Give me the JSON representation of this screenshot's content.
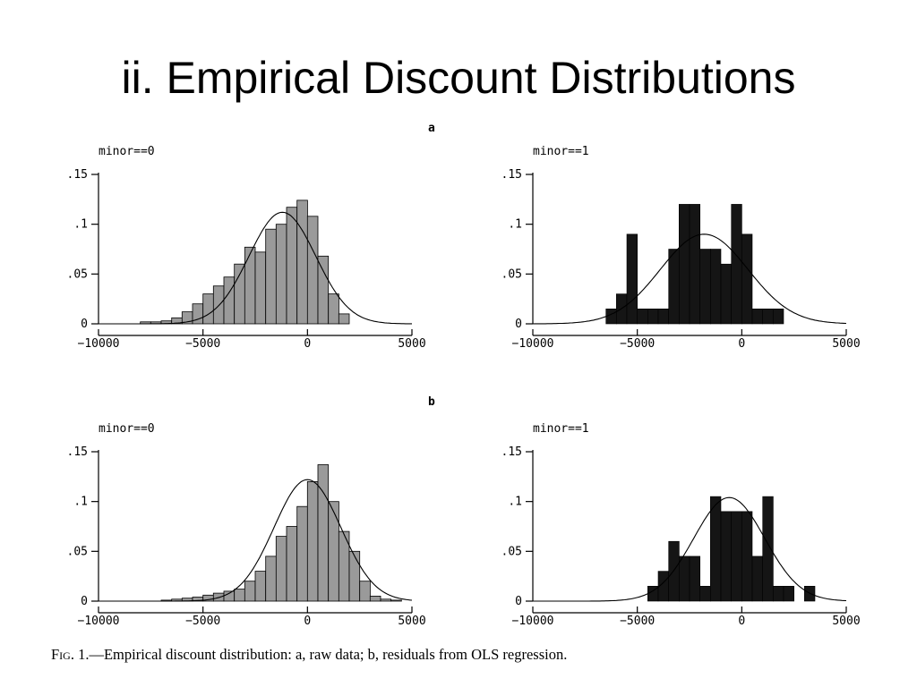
{
  "slide": {
    "title": "ii. Empirical Discount Distributions",
    "panel_a_label": "a",
    "panel_b_label": "b",
    "caption_fig": "Fig. 1.",
    "caption_text": "—Empirical discount distribution: a, raw data; b, residuals from OLS regression."
  },
  "colors": {
    "light_bars": "#9a9a9a",
    "dark_bars": "#151515",
    "curve": "#000000"
  },
  "chart_data": [
    {
      "type": "bar",
      "panel": "a",
      "title": "minor==0",
      "xlim": [
        -10000,
        5000
      ],
      "ylim": [
        0,
        0.15
      ],
      "xticks": [
        -10000,
        -5000,
        0,
        5000
      ],
      "xtick_labels": [
        "-10000",
        "-5000",
        "0",
        "5000"
      ],
      "yticks": [
        0,
        0.05,
        0.1,
        0.15
      ],
      "ytick_labels": [
        "0",
        ".05",
        ".1",
        ".15"
      ],
      "bin_width": 500,
      "bins": [
        {
          "x0": -8000,
          "y": 0.002
        },
        {
          "x0": -7500,
          "y": 0.002
        },
        {
          "x0": -7000,
          "y": 0.003
        },
        {
          "x0": -6500,
          "y": 0.006
        },
        {
          "x0": -6000,
          "y": 0.012
        },
        {
          "x0": -5500,
          "y": 0.02
        },
        {
          "x0": -5000,
          "y": 0.03
        },
        {
          "x0": -4500,
          "y": 0.038
        },
        {
          "x0": -4000,
          "y": 0.047
        },
        {
          "x0": -3500,
          "y": 0.06
        },
        {
          "x0": -3000,
          "y": 0.077
        },
        {
          "x0": -2500,
          "y": 0.072
        },
        {
          "x0": -2000,
          "y": 0.095
        },
        {
          "x0": -1500,
          "y": 0.1
        },
        {
          "x0": -1000,
          "y": 0.117
        },
        {
          "x0": -500,
          "y": 0.124
        },
        {
          "x0": 0,
          "y": 0.108
        },
        {
          "x0": 500,
          "y": 0.068
        },
        {
          "x0": 1000,
          "y": 0.03
        },
        {
          "x0": 1500,
          "y": 0.01
        }
      ],
      "curve": {
        "mean": -1200,
        "sd": 1600,
        "peak": 0.112
      }
    },
    {
      "type": "bar",
      "panel": "a",
      "title": "minor==1",
      "xlim": [
        -10000,
        5000
      ],
      "ylim": [
        0,
        0.15
      ],
      "xticks": [
        -10000,
        -5000,
        0,
        5000
      ],
      "xtick_labels": [
        "-10000",
        "-5000",
        "0",
        "5000"
      ],
      "yticks": [
        0,
        0.05,
        0.1,
        0.15
      ],
      "ytick_labels": [
        "0",
        ".05",
        ".1",
        ".15"
      ],
      "bin_width": 500,
      "bins": [
        {
          "x0": -6500,
          "y": 0.015
        },
        {
          "x0": -6000,
          "y": 0.03
        },
        {
          "x0": -5500,
          "y": 0.09
        },
        {
          "x0": -5000,
          "y": 0.015
        },
        {
          "x0": -4500,
          "y": 0.015
        },
        {
          "x0": -4000,
          "y": 0.015
        },
        {
          "x0": -3500,
          "y": 0.075
        },
        {
          "x0": -3000,
          "y": 0.12
        },
        {
          "x0": -2500,
          "y": 0.12
        },
        {
          "x0": -2000,
          "y": 0.075
        },
        {
          "x0": -1500,
          "y": 0.075
        },
        {
          "x0": -1000,
          "y": 0.06
        },
        {
          "x0": -500,
          "y": 0.12
        },
        {
          "x0": 0,
          "y": 0.09
        },
        {
          "x0": 500,
          "y": 0.015
        },
        {
          "x0": 1000,
          "y": 0.015
        },
        {
          "x0": 1500,
          "y": 0.015
        }
      ],
      "curve": {
        "mean": -1800,
        "sd": 2100,
        "peak": 0.09
      }
    },
    {
      "type": "bar",
      "panel": "b",
      "title": "minor==0",
      "xlim": [
        -10000,
        5000
      ],
      "ylim": [
        0,
        0.15
      ],
      "xticks": [
        -10000,
        -5000,
        0,
        5000
      ],
      "xtick_labels": [
        "-10000",
        "-5000",
        "0",
        "5000"
      ],
      "yticks": [
        0,
        0.05,
        0.1,
        0.15
      ],
      "ytick_labels": [
        "0",
        ".05",
        ".1",
        ".15"
      ],
      "bin_width": 500,
      "bins": [
        {
          "x0": -7000,
          "y": 0.001
        },
        {
          "x0": -6500,
          "y": 0.002
        },
        {
          "x0": -6000,
          "y": 0.003
        },
        {
          "x0": -5500,
          "y": 0.004
        },
        {
          "x0": -5000,
          "y": 0.006
        },
        {
          "x0": -4500,
          "y": 0.008
        },
        {
          "x0": -4000,
          "y": 0.01
        },
        {
          "x0": -3500,
          "y": 0.012
        },
        {
          "x0": -3000,
          "y": 0.02
        },
        {
          "x0": -2500,
          "y": 0.03
        },
        {
          "x0": -2000,
          "y": 0.045
        },
        {
          "x0": -1500,
          "y": 0.065
        },
        {
          "x0": -1000,
          "y": 0.075
        },
        {
          "x0": -500,
          "y": 0.095
        },
        {
          "x0": 0,
          "y": 0.12
        },
        {
          "x0": 500,
          "y": 0.137
        },
        {
          "x0": 1000,
          "y": 0.1
        },
        {
          "x0": 1500,
          "y": 0.07
        },
        {
          "x0": 2000,
          "y": 0.05
        },
        {
          "x0": 2500,
          "y": 0.02
        },
        {
          "x0": 3000,
          "y": 0.005
        },
        {
          "x0": 3500,
          "y": 0.002
        },
        {
          "x0": 4000,
          "y": 0.001
        }
      ],
      "curve": {
        "mean": 0,
        "sd": 1600,
        "peak": 0.122
      }
    },
    {
      "type": "bar",
      "panel": "b",
      "title": "minor==1",
      "xlim": [
        -10000,
        5000
      ],
      "ylim": [
        0,
        0.15
      ],
      "xticks": [
        -10000,
        -5000,
        0,
        5000
      ],
      "xtick_labels": [
        "-10000",
        "-5000",
        "0",
        "5000"
      ],
      "yticks": [
        0,
        0.05,
        0.1,
        0.15
      ],
      "ytick_labels": [
        "0",
        ".05",
        ".1",
        ".15"
      ],
      "bin_width": 500,
      "bins": [
        {
          "x0": -4500,
          "y": 0.015
        },
        {
          "x0": -4000,
          "y": 0.03
        },
        {
          "x0": -3500,
          "y": 0.06
        },
        {
          "x0": -3000,
          "y": 0.045
        },
        {
          "x0": -2500,
          "y": 0.045
        },
        {
          "x0": -2000,
          "y": 0.015
        },
        {
          "x0": -1500,
          "y": 0.105
        },
        {
          "x0": -1000,
          "y": 0.09
        },
        {
          "x0": -500,
          "y": 0.09
        },
        {
          "x0": 0,
          "y": 0.09
        },
        {
          "x0": 500,
          "y": 0.045
        },
        {
          "x0": 1000,
          "y": 0.105
        },
        {
          "x0": 1500,
          "y": 0.015
        },
        {
          "x0": 2000,
          "y": 0.015
        },
        {
          "x0": 3000,
          "y": 0.015
        }
      ],
      "curve": {
        "mean": -600,
        "sd": 1700,
        "peak": 0.104
      }
    }
  ]
}
